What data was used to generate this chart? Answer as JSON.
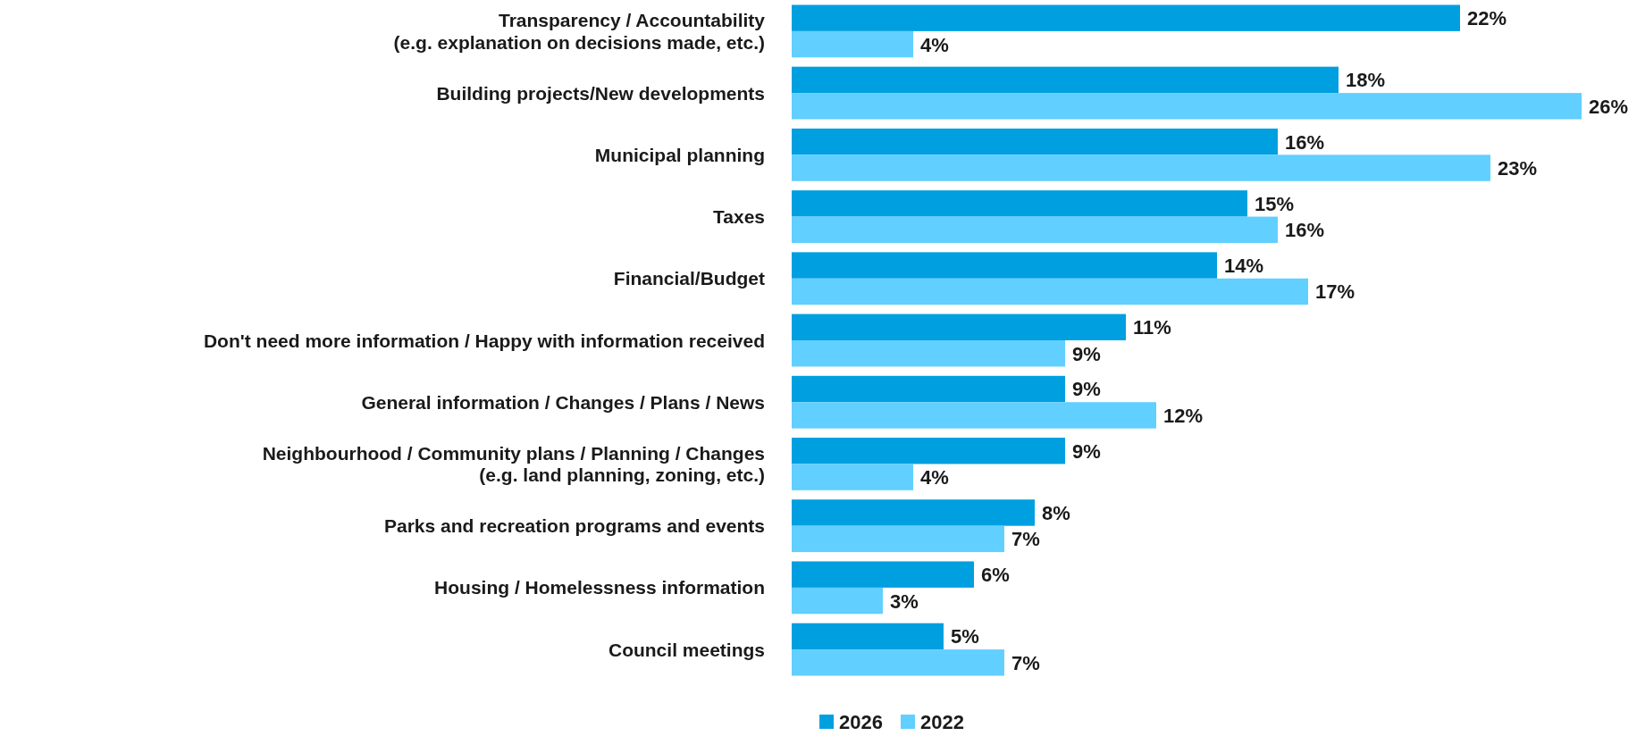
{
  "chart_data": {
    "type": "bar",
    "orientation": "horizontal",
    "categories": [
      "Transparency / Accountability\n(e.g. explanation on decisions made, etc.)",
      "Building projects/New developments",
      "Municipal planning",
      "Taxes",
      "Financial/Budget",
      "Don't need more information / Happy with information received",
      "General information / Changes / Plans / News",
      "Neighbourhood / Community plans / Planning / Changes\n(e.g. land planning, zoning, etc.)",
      "Parks and recreation programs and events",
      "Housing / Homelessness information",
      "Council meetings"
    ],
    "series": [
      {
        "name": "2026",
        "color": "#009fe0",
        "values": [
          22,
          18,
          16,
          15,
          14,
          11,
          9,
          9,
          8,
          6,
          5
        ],
        "value_labels": [
          "22%",
          "18%",
          "16%",
          "15%",
          "14%",
          "11%",
          "9%",
          "9%",
          "8%",
          "6%",
          "5%"
        ]
      },
      {
        "name": "2022",
        "color": "#61cfff",
        "values": [
          4,
          26,
          23,
          16,
          17,
          9,
          12,
          4,
          7,
          3,
          7
        ],
        "value_labels": [
          "4%",
          "26%",
          "23%",
          "16%",
          "17%",
          "9%",
          "12%",
          "4%",
          "7%",
          "3%",
          "7%"
        ]
      }
    ],
    "legend": "bottom",
    "tick_labels": "y"
  }
}
